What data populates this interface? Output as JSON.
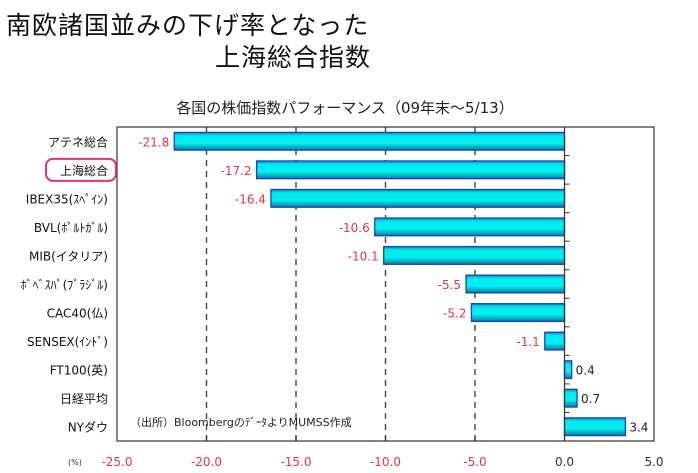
{
  "header": {
    "title_line1": "南欧諸国並みの下げ率となった",
    "title_line2": "上海総合指数"
  },
  "chart_data": {
    "type": "bar",
    "orientation": "horizontal",
    "title": "各国の株価指数パフォーマンス（09年末～5/13）",
    "xlabel": "",
    "unit_label": "(%)",
    "source_note": "（出所）BloombergのﾃﾞｰﾀよりMUMSS作成",
    "categories": [
      "アテネ総合",
      "上海総合",
      "IBEX35(ｽﾍﾟｲﾝ)",
      "BVL(ﾎﾟﾙﾄｶﾞﾙ)",
      "MIB(イタリア)",
      "ﾎﾞﾍﾞｽﾊﾟ(ﾌﾞﾗｼﾞﾙ)",
      "CAC40(仏)",
      "SENSEX(ｲﾝﾄﾞ)",
      "FT100(英)",
      "日経平均",
      "NYダウ"
    ],
    "values": [
      -21.8,
      -17.2,
      -16.4,
      -10.6,
      -10.1,
      -5.5,
      -5.2,
      -1.1,
      0.4,
      0.7,
      3.4
    ],
    "data_labels": [
      "-21.8",
      "-17.2",
      "-16.4",
      "-10.6",
      "-10.1",
      "-5.5",
      "-5.2",
      "-1.1",
      "0.4",
      "0.7",
      "3.4"
    ],
    "highlighted_category": "上海総合",
    "xlim": [
      -25,
      5
    ],
    "xticks": [
      -25,
      -20,
      -15,
      -10,
      -5,
      0,
      5
    ],
    "xtick_labels": [
      "-25.0",
      "-20.0",
      "-15.0",
      "-10.0",
      "-5.0",
      "0.0",
      "5.0"
    ],
    "grid": "vertical dashed",
    "colors": {
      "bar_fill": "#00e5e5",
      "bar_edge": "#1a3fc8",
      "negative_label": "#e8334a",
      "positive_label": "#222222",
      "highlight_box": "#e0307a"
    }
  }
}
